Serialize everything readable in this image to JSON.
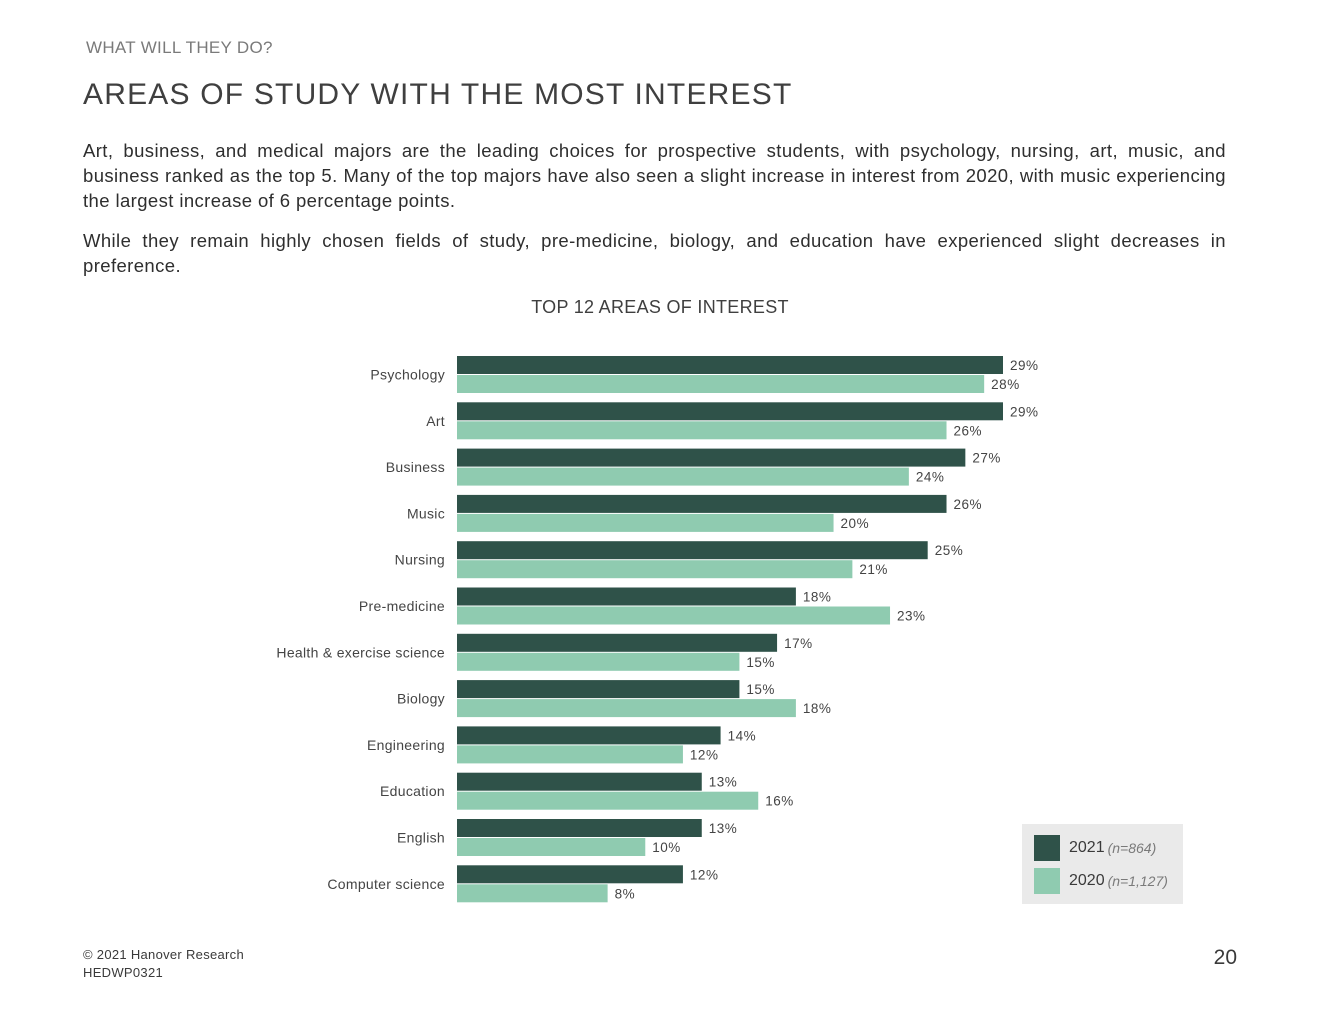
{
  "header": {
    "kicker": "WHAT WILL THEY DO?",
    "title": "AREAS OF STUDY WITH THE MOST INTEREST"
  },
  "body": {
    "para1": "Art, business, and medical majors are the leading choices for prospective students, with psychology, nursing, art, music, and business ranked as the top 5. Many of the top majors have also seen a slight increase in interest from 2020, with music experiencing the largest increase of 6 percentage points.",
    "para2": "While they remain highly chosen fields of study, pre-medicine, biology, and education have experienced slight decreases in preference."
  },
  "chart_data": {
    "type": "bar",
    "orientation": "horizontal",
    "title": "TOP 12 AREAS OF INTEREST",
    "categories": [
      "Psychology",
      "Art",
      "Business",
      "Music",
      "Nursing",
      "Pre-medicine",
      "Health & exercise science",
      "Biology",
      "Engineering",
      "Education",
      "English",
      "Computer science"
    ],
    "series": [
      {
        "name": "2021",
        "n_label": "(n=864)",
        "color": "#2f5249",
        "values": [
          29,
          29,
          27,
          26,
          25,
          18,
          17,
          15,
          14,
          13,
          13,
          12
        ]
      },
      {
        "name": "2020",
        "n_label": "(n=1,127)",
        "color": "#8fcbb0",
        "values": [
          28,
          26,
          24,
          20,
          21,
          23,
          15,
          18,
          12,
          16,
          10,
          8
        ]
      }
    ],
    "value_suffix": "%",
    "xlim": [
      0,
      29
    ],
    "xlabel": "",
    "ylabel": "",
    "grid": false,
    "legend_position": "bottom-right"
  },
  "footer": {
    "copyright": "© 2021 Hanover Research",
    "code": "HEDWP0321",
    "page_number": "20"
  }
}
